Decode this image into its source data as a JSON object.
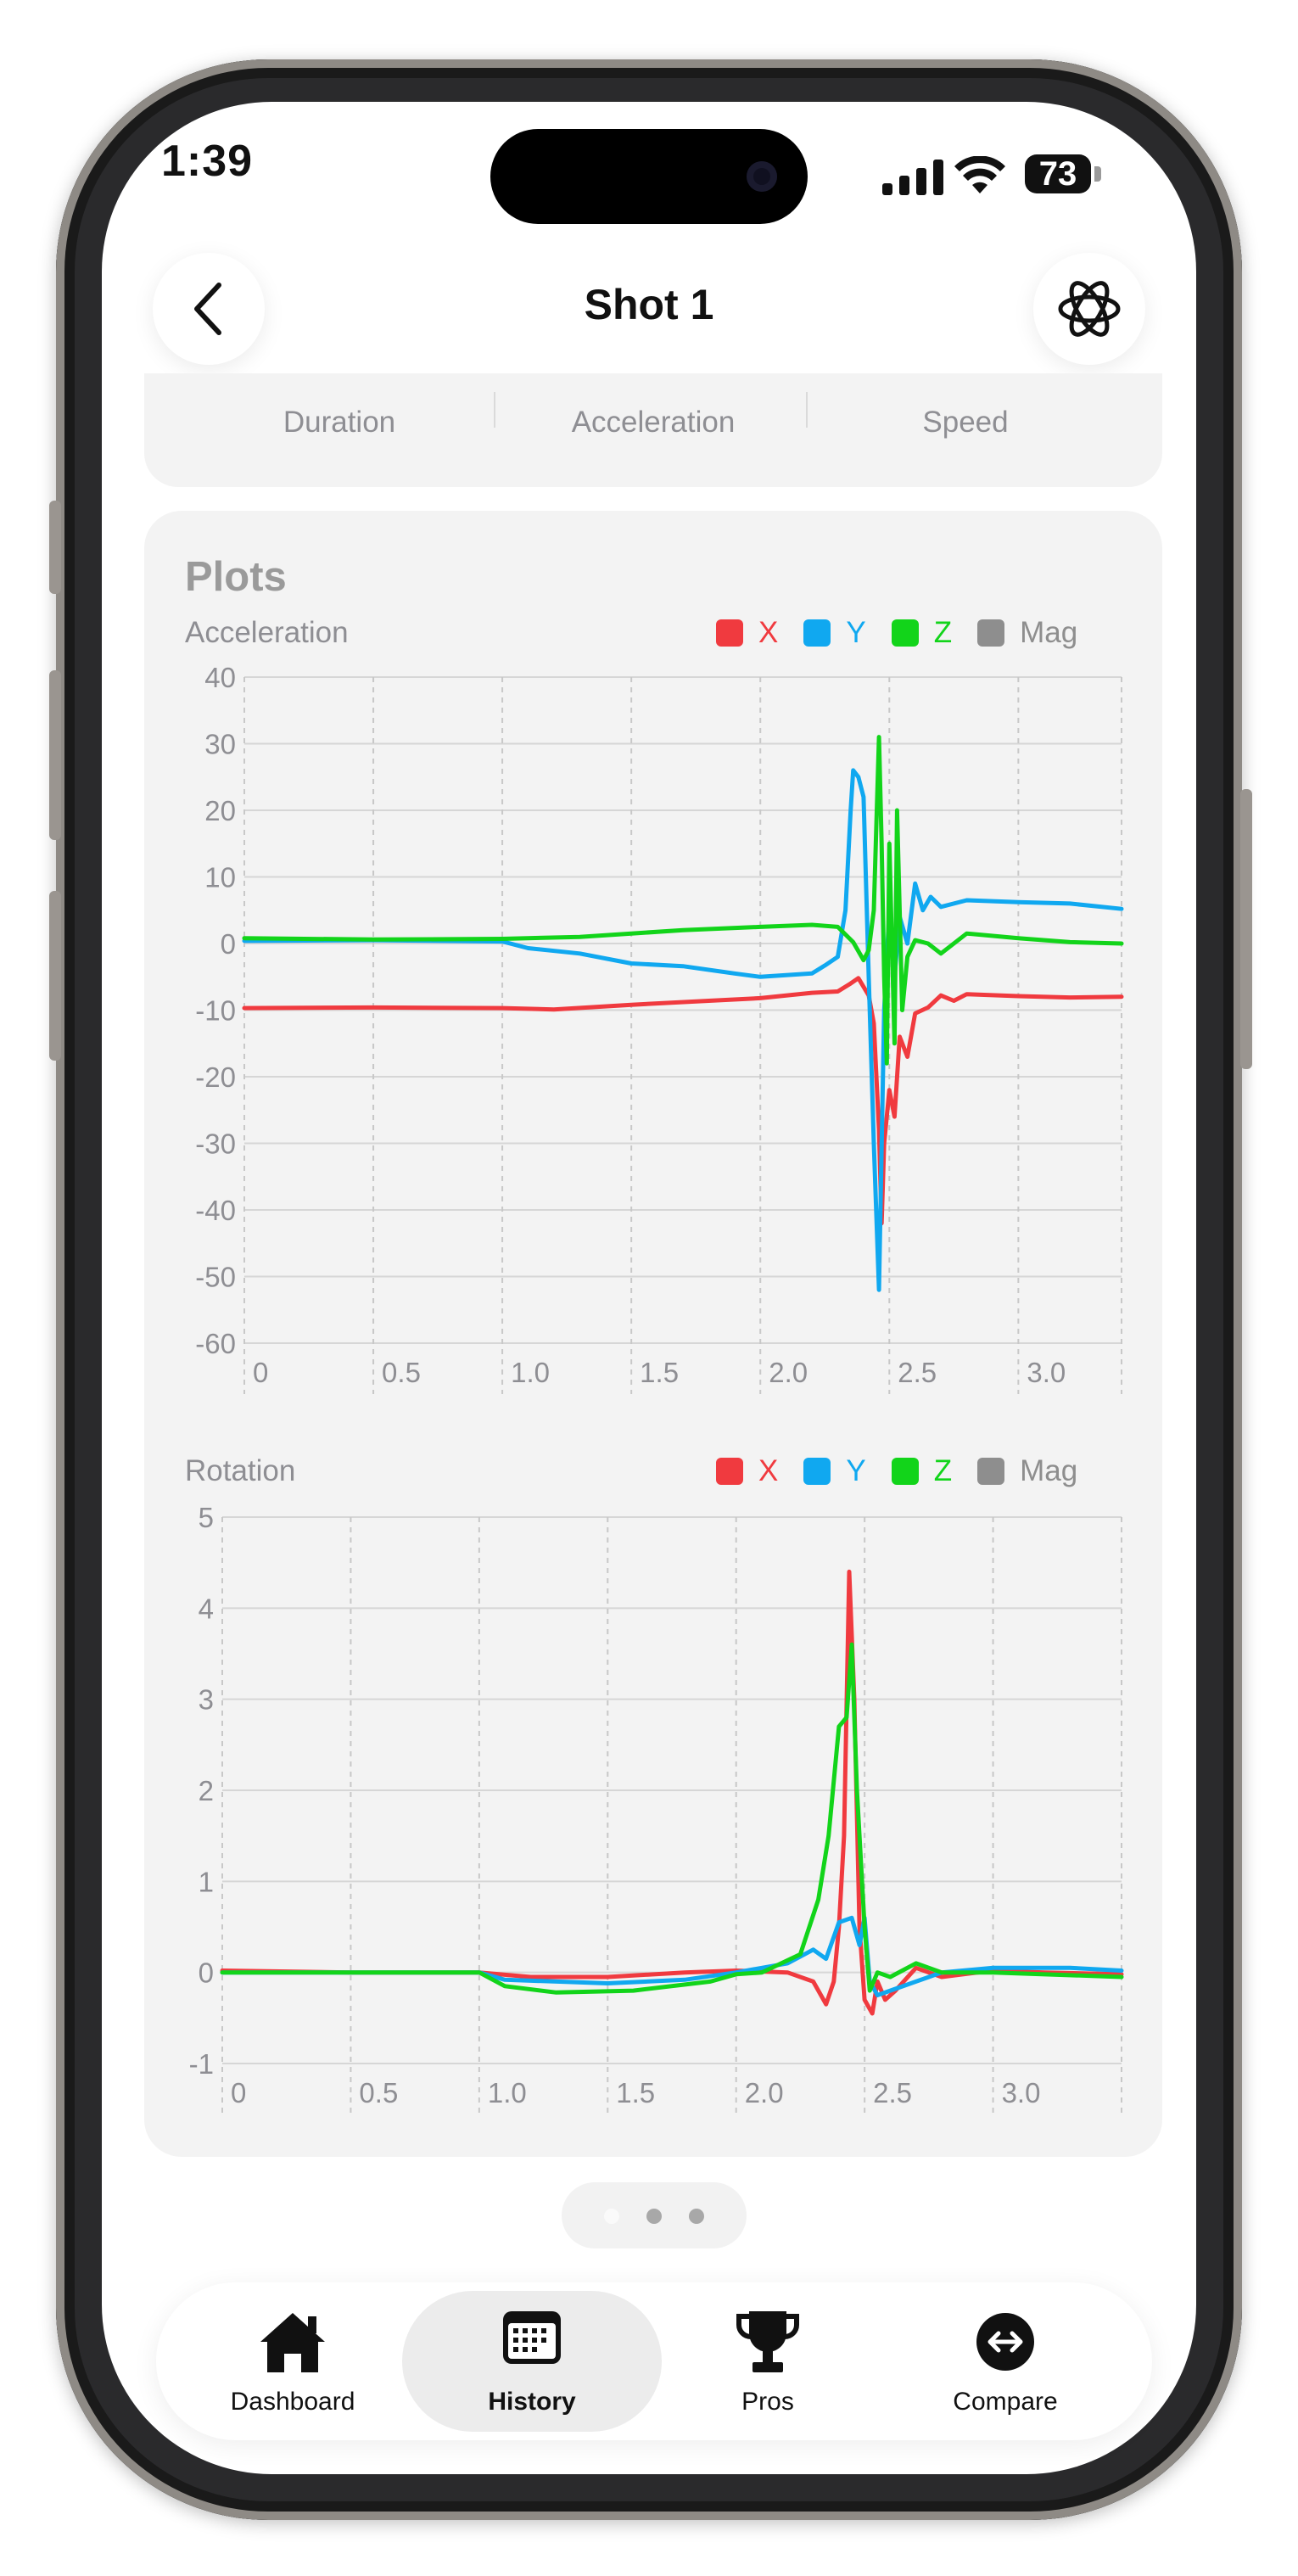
{
  "status_bar": {
    "time": "1:39",
    "battery": "73"
  },
  "header": {
    "title": "Shot 1"
  },
  "stats": {
    "labels": [
      "Duration",
      "Acceleration",
      "Speed"
    ]
  },
  "plots": {
    "title": "Plots",
    "legend": [
      "X",
      "Y",
      "Z",
      "Mag"
    ],
    "colors": {
      "X": "#f03a3f",
      "Y": "#10a8f0",
      "Z": "#12d41a",
      "Mag": "#8e8e8e"
    }
  },
  "chart_data": [
    {
      "type": "line",
      "title": "Acceleration",
      "xlabel": "",
      "ylabel": "",
      "xlim": [
        0,
        3.4
      ],
      "ylim": [
        -60,
        40
      ],
      "xticks": [
        "0",
        "0.5",
        "1.0",
        "1.5",
        "2.0",
        "2.5",
        "3.0"
      ],
      "yticks": [
        "40",
        "30",
        "20",
        "10",
        "0",
        "-10",
        "-20",
        "-30",
        "-40",
        "-50",
        "-60"
      ],
      "grid": true,
      "legend_position": "top-right",
      "series": [
        {
          "name": "X",
          "points": [
            [
              0,
              -9.7
            ],
            [
              0.5,
              -9.6
            ],
            [
              1.0,
              -9.7
            ],
            [
              1.2,
              -9.9
            ],
            [
              1.5,
              -9.2
            ],
            [
              1.8,
              -8.6
            ],
            [
              2.0,
              -8.2
            ],
            [
              2.2,
              -7.4
            ],
            [
              2.3,
              -7.2
            ],
            [
              2.35,
              -6.0
            ],
            [
              2.38,
              -5.2
            ],
            [
              2.42,
              -7.8
            ],
            [
              2.44,
              -12.0
            ],
            [
              2.46,
              -28.0
            ],
            [
              2.47,
              -42.0
            ],
            [
              2.48,
              -30.0
            ],
            [
              2.5,
              -22.0
            ],
            [
              2.52,
              -26.0
            ],
            [
              2.54,
              -14.0
            ],
            [
              2.57,
              -17.0
            ],
            [
              2.6,
              -10.5
            ],
            [
              2.65,
              -9.6
            ],
            [
              2.7,
              -7.8
            ],
            [
              2.75,
              -8.6
            ],
            [
              2.8,
              -7.6
            ],
            [
              3.0,
              -7.9
            ],
            [
              3.2,
              -8.1
            ],
            [
              3.4,
              -8.0
            ]
          ]
        },
        {
          "name": "Y",
          "points": [
            [
              0,
              0.4
            ],
            [
              0.5,
              0.5
            ],
            [
              1.0,
              0.3
            ],
            [
              1.1,
              -0.7
            ],
            [
              1.3,
              -1.5
            ],
            [
              1.5,
              -3.0
            ],
            [
              1.7,
              -3.4
            ],
            [
              1.9,
              -4.5
            ],
            [
              2.0,
              -5.0
            ],
            [
              2.2,
              -4.5
            ],
            [
              2.25,
              -3.3
            ],
            [
              2.3,
              -2.0
            ],
            [
              2.33,
              5.0
            ],
            [
              2.35,
              20.0
            ],
            [
              2.36,
              26.0
            ],
            [
              2.38,
              25.0
            ],
            [
              2.4,
              22.0
            ],
            [
              2.42,
              -5.0
            ],
            [
              2.44,
              -30.0
            ],
            [
              2.46,
              -52.0
            ],
            [
              2.48,
              -10.0
            ],
            [
              2.5,
              5.0
            ],
            [
              2.52,
              -5.0
            ],
            [
              2.54,
              4.0
            ],
            [
              2.57,
              0.0
            ],
            [
              2.6,
              9.0
            ],
            [
              2.63,
              5.0
            ],
            [
              2.66,
              7.0
            ],
            [
              2.7,
              5.5
            ],
            [
              2.8,
              6.5
            ],
            [
              3.0,
              6.2
            ],
            [
              3.2,
              6.0
            ],
            [
              3.4,
              5.2
            ]
          ]
        },
        {
          "name": "Z",
          "points": [
            [
              0,
              0.8
            ],
            [
              0.5,
              0.6
            ],
            [
              1.0,
              0.7
            ],
            [
              1.3,
              1.0
            ],
            [
              1.5,
              1.5
            ],
            [
              1.7,
              2.0
            ],
            [
              2.0,
              2.5
            ],
            [
              2.2,
              2.8
            ],
            [
              2.3,
              2.5
            ],
            [
              2.36,
              0.2
            ],
            [
              2.4,
              -2.5
            ],
            [
              2.42,
              -1.0
            ],
            [
              2.44,
              5.0
            ],
            [
              2.46,
              31.0
            ],
            [
              2.47,
              15.0
            ],
            [
              2.48,
              -5.0
            ],
            [
              2.49,
              -18.0
            ],
            [
              2.5,
              15.0
            ],
            [
              2.52,
              -15.0
            ],
            [
              2.53,
              20.0
            ],
            [
              2.55,
              -10.0
            ],
            [
              2.57,
              -2.0
            ],
            [
              2.6,
              0.5
            ],
            [
              2.65,
              0.0
            ],
            [
              2.7,
              -1.5
            ],
            [
              2.8,
              1.5
            ],
            [
              3.0,
              0.8
            ],
            [
              3.2,
              0.2
            ],
            [
              3.4,
              0.0
            ]
          ]
        }
      ]
    },
    {
      "type": "line",
      "title": "Rotation",
      "xlabel": "",
      "ylabel": "",
      "xlim": [
        0,
        3.5
      ],
      "ylim": [
        -1,
        5
      ],
      "xticks": [
        "0",
        "0.5",
        "1.0",
        "1.5",
        "2.0",
        "2.5",
        "3.0"
      ],
      "yticks": [
        "5",
        "4",
        "3",
        "2",
        "1",
        "0",
        "-1"
      ],
      "grid": true,
      "legend_position": "top-right",
      "series": [
        {
          "name": "X",
          "points": [
            [
              0,
              0.02
            ],
            [
              0.5,
              0.0
            ],
            [
              1.0,
              0.0
            ],
            [
              1.2,
              -0.05
            ],
            [
              1.5,
              -0.05
            ],
            [
              1.8,
              0.0
            ],
            [
              2.0,
              0.02
            ],
            [
              2.2,
              0.0
            ],
            [
              2.3,
              -0.1
            ],
            [
              2.35,
              -0.35
            ],
            [
              2.38,
              -0.1
            ],
            [
              2.4,
              0.5
            ],
            [
              2.42,
              1.5
            ],
            [
              2.44,
              4.4
            ],
            [
              2.46,
              3.0
            ],
            [
              2.48,
              0.5
            ],
            [
              2.5,
              -0.3
            ],
            [
              2.53,
              -0.45
            ],
            [
              2.55,
              -0.1
            ],
            [
              2.58,
              -0.3
            ],
            [
              2.62,
              -0.2
            ],
            [
              2.7,
              0.05
            ],
            [
              2.8,
              -0.05
            ],
            [
              3.0,
              0.02
            ],
            [
              3.2,
              0.0
            ],
            [
              3.5,
              -0.02
            ]
          ]
        },
        {
          "name": "Y",
          "points": [
            [
              0,
              0.0
            ],
            [
              0.5,
              0.0
            ],
            [
              1.0,
              0.0
            ],
            [
              1.1,
              -0.08
            ],
            [
              1.5,
              -0.12
            ],
            [
              1.8,
              -0.08
            ],
            [
              2.0,
              0.0
            ],
            [
              2.2,
              0.1
            ],
            [
              2.3,
              0.25
            ],
            [
              2.35,
              0.15
            ],
            [
              2.4,
              0.55
            ],
            [
              2.45,
              0.6
            ],
            [
              2.48,
              0.3
            ],
            [
              2.5,
              0.6
            ],
            [
              2.52,
              -0.1
            ],
            [
              2.55,
              -0.25
            ],
            [
              2.6,
              -0.2
            ],
            [
              2.7,
              -0.1
            ],
            [
              2.8,
              0.0
            ],
            [
              3.0,
              0.05
            ],
            [
              3.3,
              0.05
            ],
            [
              3.5,
              0.02
            ]
          ]
        },
        {
          "name": "Z",
          "points": [
            [
              0,
              0.0
            ],
            [
              0.5,
              0.0
            ],
            [
              1.0,
              0.0
            ],
            [
              1.1,
              -0.15
            ],
            [
              1.3,
              -0.22
            ],
            [
              1.6,
              -0.2
            ],
            [
              1.9,
              -0.1
            ],
            [
              2.0,
              -0.02
            ],
            [
              2.1,
              0.0
            ],
            [
              2.25,
              0.2
            ],
            [
              2.32,
              0.8
            ],
            [
              2.36,
              1.5
            ],
            [
              2.4,
              2.7
            ],
            [
              2.43,
              2.8
            ],
            [
              2.45,
              3.6
            ],
            [
              2.47,
              2.0
            ],
            [
              2.5,
              0.5
            ],
            [
              2.52,
              -0.2
            ],
            [
              2.55,
              0.0
            ],
            [
              2.6,
              -0.05
            ],
            [
              2.7,
              0.1
            ],
            [
              2.8,
              0.0
            ],
            [
              3.0,
              0.0
            ],
            [
              3.5,
              -0.05
            ]
          ]
        }
      ]
    }
  ],
  "pager": {
    "count": 3,
    "active": 0
  },
  "tabbar": {
    "tabs": [
      {
        "label": "Dashboard",
        "icon": "house-icon"
      },
      {
        "label": "History",
        "icon": "calendar-icon",
        "active": true
      },
      {
        "label": "Pros",
        "icon": "trophy-icon"
      },
      {
        "label": "Compare",
        "icon": "compare-arrows-icon"
      }
    ]
  }
}
